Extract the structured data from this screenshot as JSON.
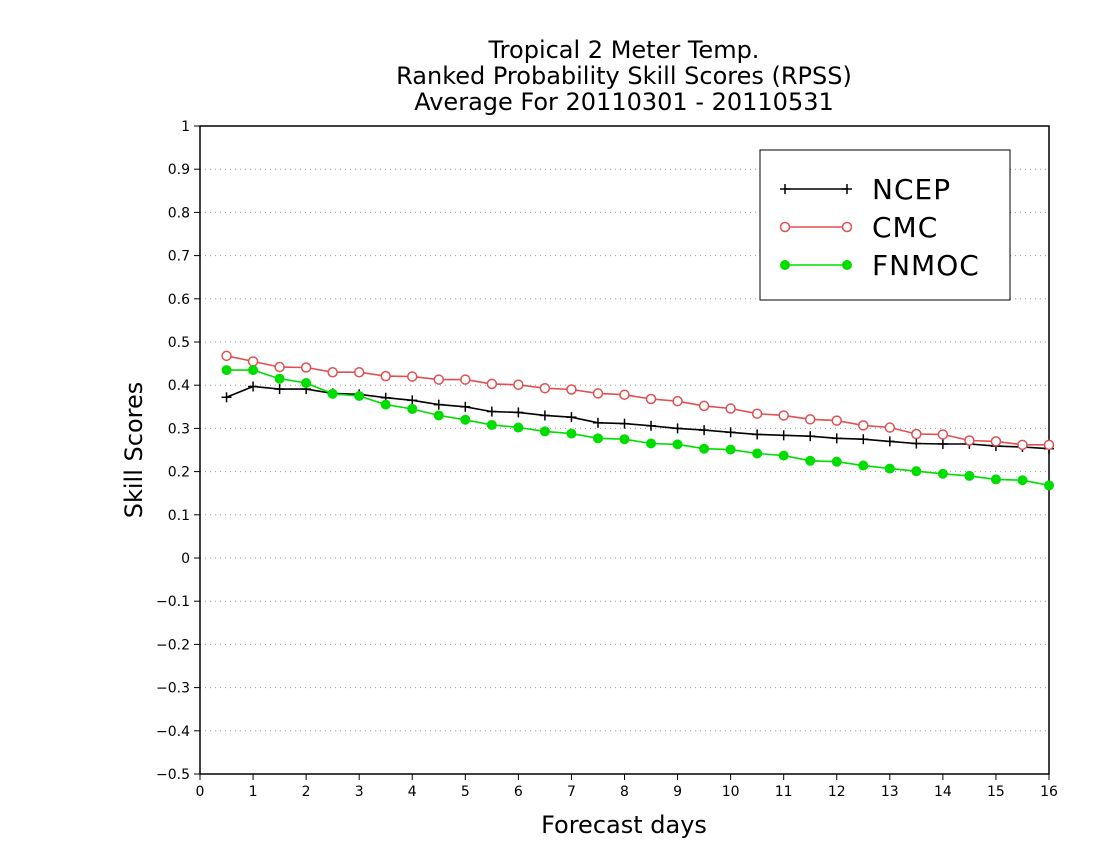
{
  "chart_data": {
    "type": "line",
    "title": [
      "Tropical 2 Meter Temp.",
      "Ranked Probability Skill Scores (RPSS)",
      "Average For 20110301 - 20110531"
    ],
    "xlabel": "Forecast days",
    "ylabel": "Skill Scores",
    "xlim": [
      0,
      16
    ],
    "ylim": [
      -0.5,
      1
    ],
    "xticks": [
      "0",
      "1",
      "2",
      "3",
      "4",
      "5",
      "6",
      "7",
      "8",
      "9",
      "10",
      "11",
      "12",
      "13",
      "14",
      "15",
      "16"
    ],
    "yticks": [
      "1",
      "0.9",
      "0.8",
      "0.7",
      "0.6",
      "0.5",
      "0.4",
      "0.3",
      "0.2",
      "0.1",
      "0",
      "−0.1",
      "−0.2",
      "−0.3",
      "−0.4",
      "−0.5"
    ],
    "grid": true,
    "legend_position": "top-right",
    "x": [
      0.5,
      1,
      1.5,
      2,
      2.5,
      3,
      3.5,
      4,
      4.5,
      5,
      5.5,
      6,
      6.5,
      7,
      7.5,
      8,
      8.5,
      9,
      9.5,
      10,
      10.5,
      11,
      11.5,
      12,
      12.5,
      13,
      13.5,
      14,
      14.5,
      15,
      15.5,
      16
    ],
    "series": [
      {
        "name": "NCEP",
        "color": "#000000",
        "marker": "plus",
        "values": [
          0.372,
          0.397,
          0.391,
          0.391,
          0.381,
          0.379,
          0.371,
          0.365,
          0.355,
          0.35,
          0.339,
          0.337,
          0.33,
          0.326,
          0.313,
          0.311,
          0.306,
          0.3,
          0.296,
          0.291,
          0.286,
          0.284,
          0.282,
          0.277,
          0.275,
          0.27,
          0.265,
          0.264,
          0.264,
          0.259,
          0.257,
          0.253
        ]
      },
      {
        "name": "CMC",
        "color": "#e05050",
        "marker": "open-circle",
        "values": [
          0.468,
          0.455,
          0.442,
          0.441,
          0.43,
          0.43,
          0.421,
          0.42,
          0.413,
          0.413,
          0.403,
          0.401,
          0.393,
          0.39,
          0.381,
          0.378,
          0.368,
          0.363,
          0.352,
          0.346,
          0.334,
          0.33,
          0.321,
          0.318,
          0.307,
          0.302,
          0.287,
          0.286,
          0.272,
          0.27,
          0.262,
          0.262
        ]
      },
      {
        "name": "FNMOC",
        "color": "#00dd00",
        "marker": "filled-circle",
        "values": [
          0.435,
          0.435,
          0.415,
          0.405,
          0.38,
          0.375,
          0.355,
          0.345,
          0.33,
          0.32,
          0.308,
          0.302,
          0.293,
          0.288,
          0.277,
          0.275,
          0.265,
          0.263,
          0.253,
          0.251,
          0.242,
          0.237,
          0.225,
          0.223,
          0.214,
          0.207,
          0.201,
          0.195,
          0.19,
          0.182,
          0.18,
          0.168
        ]
      }
    ]
  }
}
